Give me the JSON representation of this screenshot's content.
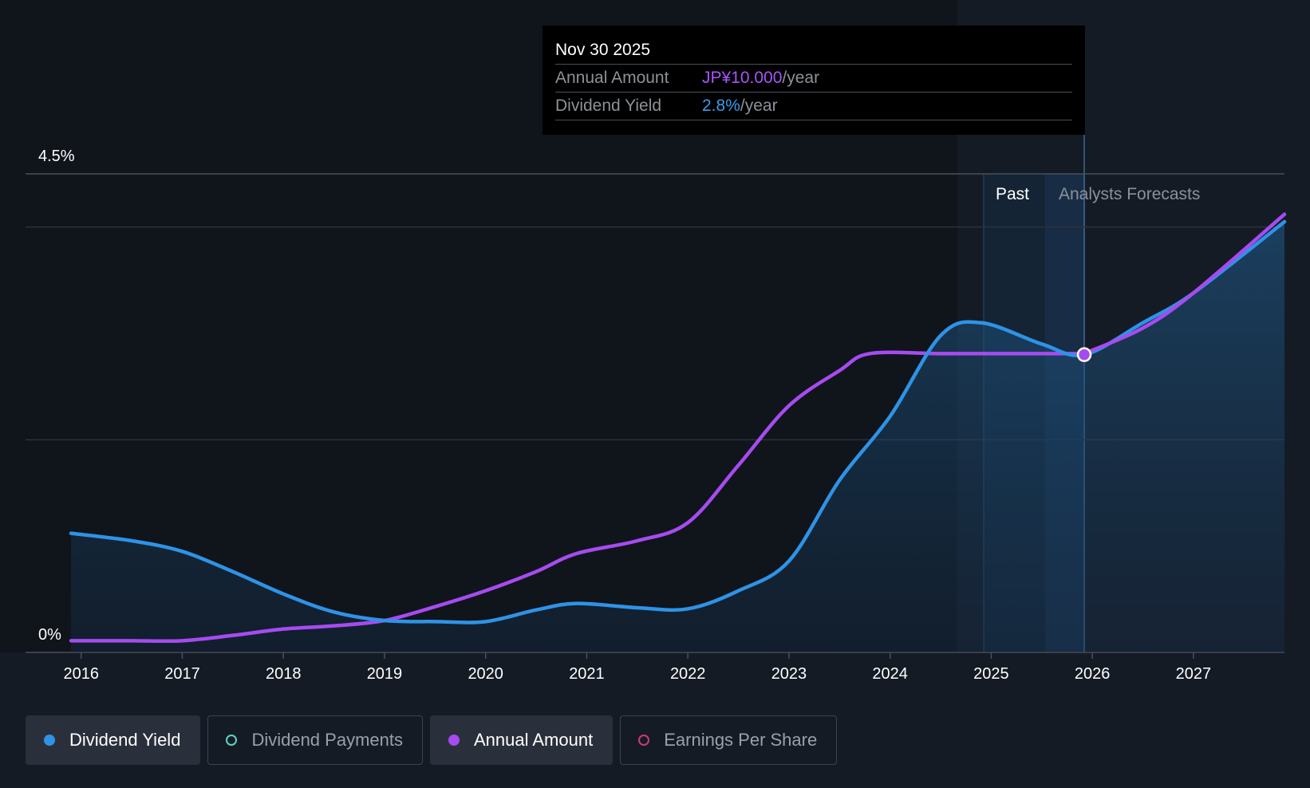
{
  "tooltip": {
    "date": "Nov 30 2025",
    "rows": [
      {
        "label": "Annual Amount",
        "value": "JP¥10.000",
        "unit": "/year"
      },
      {
        "label": "Dividend Yield",
        "value": "2.8%",
        "unit": "/year"
      }
    ]
  },
  "regions": {
    "past_label": "Past",
    "forecast_label": "Analysts Forecasts"
  },
  "colors": {
    "dividend_yield": "#2e93e6",
    "annual_amount": "#a64bf0",
    "dividend_payments": "#5dd3c7",
    "earnings_per_share": "#c83c78",
    "background": "#151b25"
  },
  "legend": [
    {
      "label": "Dividend Yield",
      "active": true,
      "dot": "filled",
      "color": "#2e93e6"
    },
    {
      "label": "Dividend Payments",
      "active": false,
      "dot": "hollow",
      "color": "#5dd3c7"
    },
    {
      "label": "Annual Amount",
      "active": true,
      "dot": "filled",
      "color": "#a64bf0"
    },
    {
      "label": "Earnings Per Share",
      "active": false,
      "dot": "hollow",
      "color": "#c83c78"
    }
  ],
  "chart_data": {
    "type": "line",
    "y_tick_labels": [
      "4.5%",
      "0%"
    ],
    "ylim": [
      0,
      4.5
    ],
    "xlim": [
      2015.45,
      2027.9
    ],
    "x_tick_labels": [
      "2016",
      "2017",
      "2018",
      "2019",
      "2020",
      "2021",
      "2022",
      "2023",
      "2024",
      "2025",
      "2026",
      "2027"
    ],
    "grid": true,
    "past_end": 2025.9,
    "highlight": {
      "x": 2025.92,
      "yield": 2.8
    },
    "series": [
      {
        "name": "Dividend Yield",
        "unit": "%",
        "points": [
          [
            2015.9,
            1.12
          ],
          [
            2016.5,
            1.05
          ],
          [
            2017,
            0.95
          ],
          [
            2017.5,
            0.76
          ],
          [
            2018,
            0.55
          ],
          [
            2018.5,
            0.38
          ],
          [
            2019,
            0.3
          ],
          [
            2019.5,
            0.29
          ],
          [
            2020,
            0.29
          ],
          [
            2020.5,
            0.4
          ],
          [
            2020.9,
            0.46
          ],
          [
            2021.5,
            0.42
          ],
          [
            2022,
            0.41
          ],
          [
            2022.5,
            0.58
          ],
          [
            2023,
            0.86
          ],
          [
            2023.5,
            1.62
          ],
          [
            2024,
            2.22
          ],
          [
            2024.5,
            2.98
          ],
          [
            2024.9,
            3.1
          ],
          [
            2025.5,
            2.9
          ],
          [
            2025.92,
            2.8
          ],
          [
            2026.5,
            3.1
          ],
          [
            2027,
            3.38
          ],
          [
            2027.9,
            4.05
          ]
        ]
      },
      {
        "name": "Annual Amount",
        "unit": "% of axis",
        "points": [
          [
            2015.9,
            0.11
          ],
          [
            2016.5,
            0.11
          ],
          [
            2017,
            0.11
          ],
          [
            2017.5,
            0.16
          ],
          [
            2018,
            0.22
          ],
          [
            2018.5,
            0.25
          ],
          [
            2019,
            0.3
          ],
          [
            2019.5,
            0.43
          ],
          [
            2020,
            0.58
          ],
          [
            2020.5,
            0.76
          ],
          [
            2020.9,
            0.93
          ],
          [
            2021.5,
            1.05
          ],
          [
            2022,
            1.22
          ],
          [
            2022.5,
            1.76
          ],
          [
            2023,
            2.32
          ],
          [
            2023.5,
            2.65
          ],
          [
            2023.8,
            2.81
          ],
          [
            2024.5,
            2.81
          ],
          [
            2025,
            2.81
          ],
          [
            2025.5,
            2.81
          ],
          [
            2025.92,
            2.81
          ],
          [
            2026.5,
            3.05
          ],
          [
            2027,
            3.38
          ],
          [
            2027.9,
            4.12
          ]
        ]
      }
    ]
  }
}
